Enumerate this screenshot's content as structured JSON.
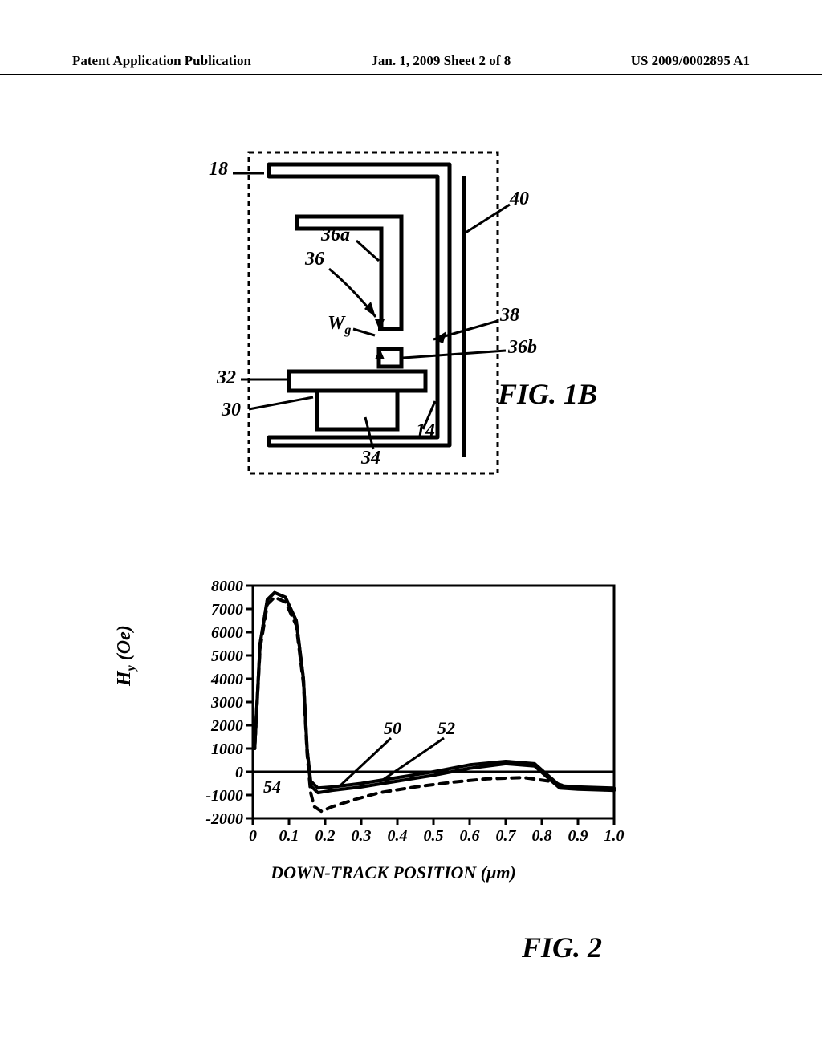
{
  "header": {
    "left": "Patent Application Publication",
    "center": "Jan. 1, 2009  Sheet 2 of 8",
    "right": "US 2009/0002895 A1"
  },
  "fig1b": {
    "label": "FIG. 1B",
    "refs": {
      "r18": "18",
      "r36a": "36a",
      "r36": "36",
      "r40": "40",
      "r38": "38",
      "r36b": "36b",
      "r32": "32",
      "r30": "30",
      "r34": "34",
      "r14": "14",
      "wg": "W",
      "wgsub": "g"
    },
    "colors": {
      "stroke": "#000000",
      "stroke_width": 4,
      "dash_border": "6,5"
    }
  },
  "fig2": {
    "label": "FIG. 2",
    "xlabel": "DOWN-TRACK POSITION (μm)",
    "ylabel": "Hy (Oe)",
    "yticks": [
      "8000",
      "7000",
      "6000",
      "5000",
      "4000",
      "3000",
      "2000",
      "1000",
      "0",
      "-1000",
      "-2000"
    ],
    "xticks": [
      "0",
      "0.1",
      "0.2",
      "0.3",
      "0.4",
      "0.5",
      "0.6",
      "0.7",
      "0.8",
      "0.9",
      "1.0"
    ],
    "ylim": [
      -2000,
      8000
    ],
    "xlim": [
      0,
      1.0
    ],
    "series": {
      "s50": {
        "label": "50",
        "style": "solid",
        "color": "#000000",
        "width": 4,
        "data": [
          [
            0.005,
            1000
          ],
          [
            0.02,
            5500
          ],
          [
            0.04,
            7400
          ],
          [
            0.06,
            7700
          ],
          [
            0.09,
            7500
          ],
          [
            0.12,
            6500
          ],
          [
            0.14,
            4000
          ],
          [
            0.15,
            1000
          ],
          [
            0.16,
            -400
          ],
          [
            0.18,
            -700
          ],
          [
            0.22,
            -650
          ],
          [
            0.3,
            -500
          ],
          [
            0.4,
            -250
          ],
          [
            0.5,
            0
          ],
          [
            0.6,
            300
          ],
          [
            0.7,
            450
          ],
          [
            0.78,
            350
          ],
          [
            0.82,
            -200
          ],
          [
            0.85,
            -600
          ],
          [
            0.9,
            -650
          ],
          [
            1.0,
            -700
          ]
        ]
      },
      "s52": {
        "label": "52",
        "style": "solid",
        "color": "#000000",
        "width": 4,
        "data": [
          [
            0.005,
            1000
          ],
          [
            0.02,
            5500
          ],
          [
            0.04,
            7400
          ],
          [
            0.06,
            7700
          ],
          [
            0.09,
            7500
          ],
          [
            0.12,
            6500
          ],
          [
            0.14,
            4000
          ],
          [
            0.15,
            1000
          ],
          [
            0.16,
            -600
          ],
          [
            0.18,
            -900
          ],
          [
            0.22,
            -800
          ],
          [
            0.3,
            -650
          ],
          [
            0.4,
            -400
          ],
          [
            0.5,
            -150
          ],
          [
            0.6,
            150
          ],
          [
            0.7,
            350
          ],
          [
            0.78,
            250
          ],
          [
            0.82,
            -300
          ],
          [
            0.85,
            -700
          ],
          [
            0.9,
            -750
          ],
          [
            1.0,
            -800
          ]
        ]
      },
      "s54": {
        "label": "54",
        "style": "dashed",
        "color": "#000000",
        "width": 4,
        "dash": "10,8",
        "data": [
          [
            0.005,
            1000
          ],
          [
            0.02,
            5300
          ],
          [
            0.04,
            7200
          ],
          [
            0.06,
            7500
          ],
          [
            0.09,
            7300
          ],
          [
            0.12,
            6300
          ],
          [
            0.14,
            3800
          ],
          [
            0.15,
            800
          ],
          [
            0.16,
            -900
          ],
          [
            0.17,
            -1500
          ],
          [
            0.19,
            -1700
          ],
          [
            0.22,
            -1500
          ],
          [
            0.28,
            -1200
          ],
          [
            0.35,
            -900
          ],
          [
            0.45,
            -650
          ],
          [
            0.55,
            -450
          ],
          [
            0.65,
            -300
          ],
          [
            0.75,
            -250
          ],
          [
            0.82,
            -400
          ],
          [
            0.88,
            -700
          ],
          [
            1.0,
            -800
          ]
        ]
      }
    },
    "colors": {
      "frame": "#000000",
      "frame_width": 3,
      "tick_fontsize": 20
    }
  }
}
